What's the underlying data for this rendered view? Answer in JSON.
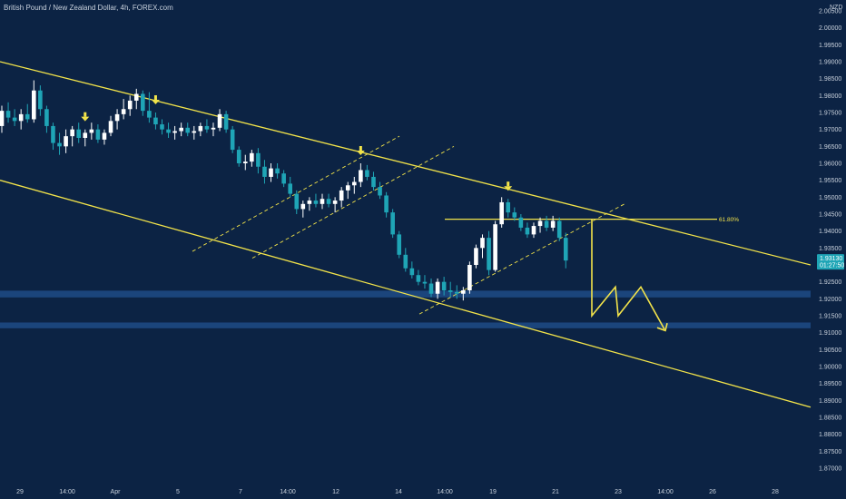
{
  "header": {
    "title": "British Pound / New Zealand Dollar, 4h, FOREX.com"
  },
  "currency_unit": "NZD",
  "price_tag": {
    "price": "1.93130",
    "countdown": "01:27:50"
  },
  "fib_label": "61.80%",
  "colors": {
    "background": "#0c2344",
    "bull_candle": "#ffffff",
    "bear_candle": "#1fa5b6",
    "trend_line": "#f2e34a",
    "zone": "#1e4b86",
    "price_tag_bg": "#1fa5b6"
  },
  "chart_data": {
    "type": "candlestick",
    "title": "British Pound / New Zealand Dollar, 4h, FOREX.com",
    "y_unit": "NZD",
    "ylim": [
      1.865,
      2.005
    ],
    "y_ticks": [
      "2.00500",
      "2.00000",
      "1.99500",
      "1.99000",
      "1.98500",
      "1.98000",
      "1.97500",
      "1.97000",
      "1.96500",
      "1.96000",
      "1.95500",
      "1.95000",
      "1.94500",
      "1.94000",
      "1.93500",
      "1.93000",
      "1.92500",
      "1.92000",
      "1.91500",
      "1.91000",
      "1.90500",
      "1.90000",
      "1.89500",
      "1.89000",
      "1.88500",
      "1.88000",
      "1.87500",
      "1.87000"
    ],
    "x_tick_labels": [
      "29",
      "14:00",
      "Apr",
      "5",
      "7",
      "14:00",
      "12",
      "14",
      "14:00",
      "19",
      "21",
      "23",
      "14:00",
      "26",
      "28"
    ],
    "last_price": 1.9313,
    "fib_level": {
      "label": "61.80%",
      "price": 1.9435
    },
    "support_zones": [
      {
        "from": 1.9204,
        "to": 1.9224
      },
      {
        "from": 1.9113,
        "to": 1.913
      }
    ],
    "candles": [
      [
        1.971,
        1.977,
        1.969,
        1.9755
      ],
      [
        1.9755,
        1.978,
        1.972,
        1.9735
      ],
      [
        1.9735,
        1.976,
        1.971,
        1.9725
      ],
      [
        1.9725,
        1.976,
        1.97,
        1.9745
      ],
      [
        1.9745,
        1.9775,
        1.972,
        1.973
      ],
      [
        1.973,
        1.9845,
        1.972,
        1.9815
      ],
      [
        1.9815,
        1.983,
        1.974,
        1.976
      ],
      [
        1.976,
        1.977,
        1.969,
        1.971
      ],
      [
        1.971,
        1.972,
        1.964,
        1.966
      ],
      [
        1.966,
        1.969,
        1.9625,
        1.965
      ],
      [
        1.965,
        1.97,
        1.963,
        1.968
      ],
      [
        1.968,
        1.971,
        1.965,
        1.97
      ],
      [
        1.97,
        1.972,
        1.966,
        1.9675
      ],
      [
        1.9675,
        1.97,
        1.965,
        1.969
      ],
      [
        1.969,
        1.972,
        1.967,
        1.97
      ],
      [
        1.97,
        1.9715,
        1.966,
        1.967
      ],
      [
        1.967,
        1.97,
        1.9655,
        1.969
      ],
      [
        1.969,
        1.974,
        1.968,
        1.9725
      ],
      [
        1.9725,
        1.976,
        1.97,
        1.9745
      ],
      [
        1.9745,
        1.979,
        1.973,
        1.976
      ],
      [
        1.976,
        1.98,
        1.974,
        1.9785
      ],
      [
        1.9785,
        1.982,
        1.976,
        1.9805
      ],
      [
        1.9805,
        1.9815,
        1.974,
        1.9755
      ],
      [
        1.9755,
        1.981,
        1.972,
        1.9735
      ],
      [
        1.9735,
        1.975,
        1.97,
        1.9715
      ],
      [
        1.9715,
        1.973,
        1.9685,
        1.97
      ],
      [
        1.97,
        1.972,
        1.9675,
        1.969
      ],
      [
        1.969,
        1.971,
        1.967,
        1.9695
      ],
      [
        1.9695,
        1.972,
        1.968,
        1.9705
      ],
      [
        1.9705,
        1.972,
        1.968,
        1.969
      ],
      [
        1.969,
        1.971,
        1.967,
        1.9695
      ],
      [
        1.9695,
        1.972,
        1.968,
        1.971
      ],
      [
        1.971,
        1.973,
        1.969,
        1.97
      ],
      [
        1.97,
        1.972,
        1.968,
        1.9705
      ],
      [
        1.9705,
        1.976,
        1.9695,
        1.9745
      ],
      [
        1.9745,
        1.9755,
        1.969,
        1.97
      ],
      [
        1.97,
        1.971,
        1.963,
        1.964
      ],
      [
        1.964,
        1.965,
        1.959,
        1.96
      ],
      [
        1.96,
        1.9625,
        1.958,
        1.9605
      ],
      [
        1.9605,
        1.964,
        1.959,
        1.963
      ],
      [
        1.963,
        1.9645,
        1.957,
        1.959
      ],
      [
        1.959,
        1.961,
        1.954,
        1.956
      ],
      [
        1.956,
        1.96,
        1.9545,
        1.9585
      ],
      [
        1.9585,
        1.96,
        1.9555,
        1.957
      ],
      [
        1.957,
        1.958,
        1.953,
        1.954
      ],
      [
        1.954,
        1.956,
        1.95,
        1.951
      ],
      [
        1.951,
        1.952,
        1.945,
        1.9465
      ],
      [
        1.9465,
        1.949,
        1.944,
        1.948
      ],
      [
        1.948,
        1.95,
        1.946,
        1.949
      ],
      [
        1.949,
        1.951,
        1.947,
        1.948
      ],
      [
        1.948,
        1.951,
        1.9465,
        1.9495
      ],
      [
        1.9495,
        1.951,
        1.947,
        1.948
      ],
      [
        1.948,
        1.95,
        1.9455,
        1.949
      ],
      [
        1.949,
        1.953,
        1.947,
        1.952
      ],
      [
        1.952,
        1.9545,
        1.9495,
        1.9535
      ],
      [
        1.9535,
        1.956,
        1.951,
        1.9545
      ],
      [
        1.9545,
        1.96,
        1.953,
        1.958
      ],
      [
        1.958,
        1.9595,
        1.955,
        1.956
      ],
      [
        1.956,
        1.9575,
        1.952,
        1.953
      ],
      [
        1.953,
        1.9545,
        1.9495,
        1.9505
      ],
      [
        1.9505,
        1.9515,
        1.944,
        1.9455
      ],
      [
        1.9455,
        1.9465,
        1.938,
        1.939
      ],
      [
        1.939,
        1.94,
        1.932,
        1.933
      ],
      [
        1.933,
        1.935,
        1.928,
        1.929
      ],
      [
        1.929,
        1.931,
        1.926,
        1.927
      ],
      [
        1.927,
        1.9285,
        1.924,
        1.925
      ],
      [
        1.925,
        1.927,
        1.923,
        1.9245
      ],
      [
        1.9245,
        1.926,
        1.9205,
        1.9215
      ],
      [
        1.9215,
        1.926,
        1.92,
        1.925
      ],
      [
        1.925,
        1.9265,
        1.921,
        1.9225
      ],
      [
        1.9225,
        1.925,
        1.9205,
        1.922
      ],
      [
        1.922,
        1.924,
        1.92,
        1.9215
      ],
      [
        1.9215,
        1.9235,
        1.9195,
        1.9225
      ],
      [
        1.9225,
        1.931,
        1.9215,
        1.93
      ],
      [
        1.93,
        1.936,
        1.929,
        1.935
      ],
      [
        1.935,
        1.939,
        1.932,
        1.938
      ],
      [
        1.938,
        1.94,
        1.927,
        1.9285
      ],
      [
        1.9285,
        1.943,
        1.928,
        1.942
      ],
      [
        1.942,
        1.95,
        1.941,
        1.9485
      ],
      [
        1.9485,
        1.9495,
        1.944,
        1.9455
      ],
      [
        1.9455,
        1.947,
        1.943,
        1.944
      ],
      [
        1.944,
        1.945,
        1.94,
        1.941
      ],
      [
        1.941,
        1.9425,
        1.938,
        1.939
      ],
      [
        1.939,
        1.9425,
        1.938,
        1.9415
      ],
      [
        1.9415,
        1.944,
        1.9395,
        1.943
      ],
      [
        1.943,
        1.9445,
        1.94,
        1.941
      ],
      [
        1.941,
        1.9445,
        1.94,
        1.943
      ],
      [
        1.943,
        1.944,
        1.937,
        1.938
      ],
      [
        1.938,
        1.9395,
        1.929,
        1.9313
      ]
    ],
    "markers": [
      {
        "shape": "arrow-down",
        "candle": 13
      },
      {
        "shape": "arrow-down",
        "candle": 24
      },
      {
        "shape": "arrow-down",
        "candle": 56
      },
      {
        "shape": "arrow-down",
        "candle": 79
      }
    ]
  }
}
